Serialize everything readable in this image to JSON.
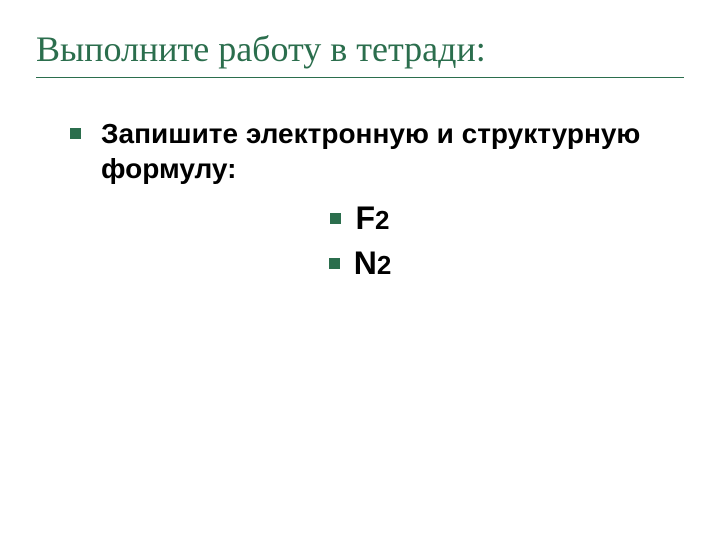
{
  "title": {
    "text": "Выполните работу в тетради:",
    "color": "#2b6e4d",
    "underline_color": "#2b6e4d",
    "fontsize": 36
  },
  "bullet": {
    "color": "#2b6e4d",
    "size": 11
  },
  "main_item": {
    "text": "Запишите электронную и структурную формулу:",
    "fontsize": 28,
    "color": "#000000",
    "indent": 34
  },
  "sub_items": [
    {
      "letter": "F",
      "subscript": "2"
    },
    {
      "letter": "N",
      "subscript": "2"
    }
  ],
  "sub_style": {
    "letter_fontsize": 32,
    "subscript_fontsize": 26,
    "color": "#000000"
  },
  "background_color": "#ffffff"
}
